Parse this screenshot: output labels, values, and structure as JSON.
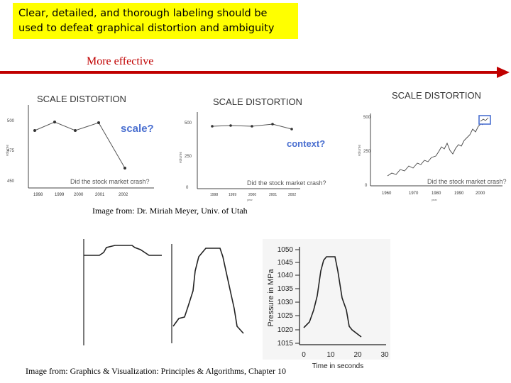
{
  "header": {
    "line1": "Clear, detailed, and thorough labeling should be",
    "line2": "used to defeat graphical distortion and ambiguity"
  },
  "arrow_label": "More effective",
  "scale_panels": [
    {
      "title": "SCALE DISTORTION",
      "question": "Did the stock market crash?",
      "annotation": "scale?",
      "ticks_y": [
        "500",
        "475",
        "450"
      ],
      "ticks_x": [
        "1998",
        "1999",
        "2000",
        "2001",
        "2002"
      ],
      "ylabel": "volume",
      "xlabel": "year"
    },
    {
      "title": "SCALE DISTORTION",
      "question": "Did the stock market crash?",
      "annotation": "context?",
      "ticks_y": [
        "500",
        "250",
        "0"
      ],
      "ticks_x": [
        "1998",
        "1999",
        "2000",
        "2001",
        "2002"
      ],
      "ylabel": "volume",
      "xlabel": "year"
    },
    {
      "title": "SCALE DISTORTION",
      "question": "Did the stock market crash?",
      "ticks_y": [
        "500",
        "250",
        "0"
      ],
      "ticks_x": [
        "1960",
        "1970",
        "1980",
        "1990",
        "2000"
      ],
      "ylabel": "volume",
      "xlabel": "year"
    }
  ],
  "caption1": "Image from: Dr. Miriah Meyer, Univ. of Utah",
  "pressure_chart": {
    "ylabel": "Pressure in MPa",
    "xlabel": "Time in seconds",
    "y_ticks": [
      "1050",
      "1045",
      "1040",
      "1035",
      "1030",
      "1025",
      "1020",
      "1015"
    ],
    "x_ticks": [
      "0",
      "10",
      "20",
      "30"
    ]
  },
  "caption2": "Image from: Graphics & Visualization: Principles & Algorithms, Chapter 10"
}
